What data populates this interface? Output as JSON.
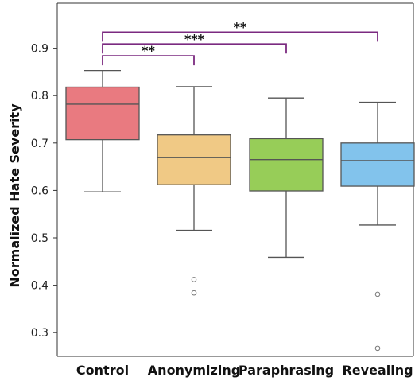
{
  "chart_data": {
    "type": "box",
    "ylabel": "Normalized Hate Severity",
    "xlabel": "",
    "ylim": [
      0.25,
      0.995
    ],
    "yticks": [
      0.3,
      0.4,
      0.5,
      0.6,
      0.7,
      0.8,
      0.9
    ],
    "grid": false,
    "categories": [
      "Control",
      "Anonymizing",
      "Paraphrasing",
      "Revealing"
    ],
    "boxes": [
      {
        "category": "Control",
        "whisker_low": 0.597,
        "q1": 0.707,
        "median": 0.782,
        "q3": 0.818,
        "whisker_high": 0.853,
        "outliers": [],
        "color": "#E97A80"
      },
      {
        "category": "Anonymizing",
        "whisker_low": 0.516,
        "q1": 0.612,
        "median": 0.669,
        "q3": 0.717,
        "whisker_high": 0.819,
        "outliers": [
          0.412,
          0.384
        ],
        "color": "#F0C985"
      },
      {
        "category": "Paraphrasing",
        "whisker_low": 0.459,
        "q1": 0.599,
        "median": 0.665,
        "q3": 0.709,
        "whisker_high": 0.795,
        "outliers": [],
        "color": "#97CD58"
      },
      {
        "category": "Revealing",
        "whisker_low": 0.527,
        "q1": 0.609,
        "median": 0.663,
        "q3": 0.7,
        "whisker_high": 0.786,
        "outliers": [
          0.381,
          0.267
        ],
        "color": "#82C3EC"
      }
    ],
    "significance": [
      {
        "from": "Control",
        "to": "Anonymizing",
        "label": "**",
        "y": 0.884,
        "color": "#7B2A80"
      },
      {
        "from": "Control",
        "to": "Paraphrasing",
        "label": "***",
        "y": 0.909,
        "color": "#7B2A80"
      },
      {
        "from": "Control",
        "to": "Revealing",
        "label": "**",
        "y": 0.934,
        "color": "#7B2A80"
      }
    ]
  }
}
